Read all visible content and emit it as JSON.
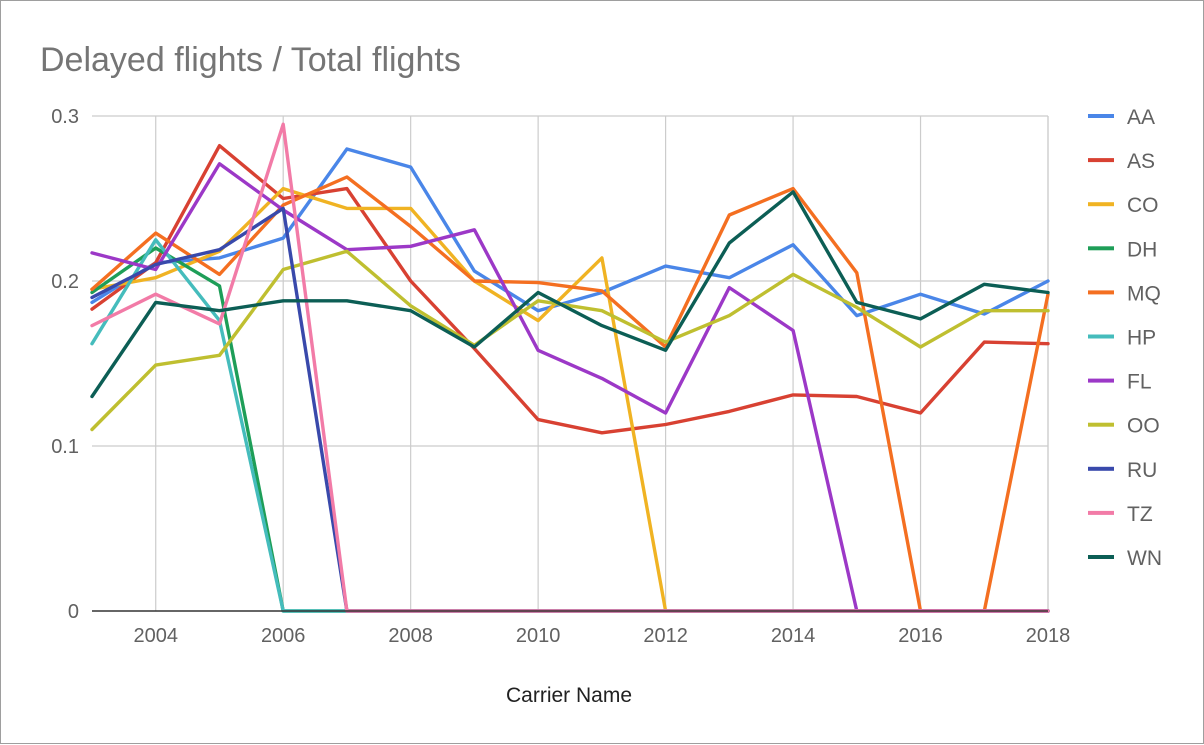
{
  "chart_data": {
    "type": "line",
    "title": "Delayed flights / Total flights",
    "xlabel": "Carrier Name",
    "ylabel": "",
    "xlim": [
      2003,
      2018
    ],
    "ylim": [
      0,
      0.3
    ],
    "x_ticks": [
      2004,
      2006,
      2008,
      2010,
      2012,
      2014,
      2016,
      2018
    ],
    "y_ticks": [
      0,
      0.1,
      0.2,
      0.3
    ],
    "y_tick_labels": [
      "0",
      "0.1",
      "0.2",
      "0.3"
    ],
    "x_gridlines_years": [
      2004,
      2006,
      2008,
      2010,
      2012,
      2014,
      2016,
      2018
    ],
    "grid": true,
    "legend_position": "right",
    "x": [
      2003,
      2004,
      2005,
      2006,
      2007,
      2008,
      2009,
      2010,
      2011,
      2012,
      2013,
      2014,
      2015,
      2016,
      2017,
      2018
    ],
    "series": [
      {
        "name": "AA",
        "color": "#4a86e8",
        "values": [
          0.187,
          0.211,
          0.214,
          0.226,
          0.28,
          0.269,
          0.206,
          0.182,
          0.193,
          0.209,
          0.202,
          0.222,
          0.179,
          0.192,
          0.18,
          0.2
        ]
      },
      {
        "name": "AS",
        "color": "#d84132",
        "values": [
          0.183,
          0.211,
          0.282,
          0.25,
          0.256,
          0.2,
          0.159,
          0.116,
          0.108,
          0.113,
          0.121,
          0.131,
          0.13,
          0.12,
          0.163,
          0.162
        ]
      },
      {
        "name": "CO",
        "color": "#f0b323",
        "values": [
          0.195,
          0.202,
          0.218,
          0.256,
          0.244,
          0.244,
          0.2,
          0.176,
          0.214,
          0.0,
          0.0,
          0.0,
          0.0,
          0.0,
          0.0,
          0.0
        ]
      },
      {
        "name": "DH",
        "color": "#1e9e58",
        "values": [
          0.193,
          0.22,
          0.197,
          0.0,
          0.0,
          0.0,
          0.0,
          0.0,
          0.0,
          0.0,
          0.0,
          0.0,
          0.0,
          0.0,
          0.0,
          0.0
        ]
      },
      {
        "name": "MQ",
        "color": "#f46f21",
        "values": [
          0.195,
          0.229,
          0.204,
          0.246,
          0.263,
          0.233,
          0.2,
          0.199,
          0.194,
          0.16,
          0.24,
          0.256,
          0.205,
          0.0,
          0.0,
          0.192
        ]
      },
      {
        "name": "HP",
        "color": "#45bcbc",
        "values": [
          0.162,
          0.225,
          0.176,
          0.0,
          0.0,
          0.0,
          0.0,
          0.0,
          0.0,
          0.0,
          0.0,
          0.0,
          0.0,
          0.0,
          0.0,
          0.0
        ]
      },
      {
        "name": "FL",
        "color": "#9c38c7",
        "values": [
          0.217,
          0.207,
          0.271,
          0.243,
          0.219,
          0.221,
          0.231,
          0.158,
          0.141,
          0.12,
          0.196,
          0.17,
          0.0,
          0.0,
          0.0,
          0.0
        ]
      },
      {
        "name": "OO",
        "color": "#bfbf30",
        "values": [
          0.11,
          0.149,
          0.155,
          0.207,
          0.218,
          0.185,
          0.161,
          0.188,
          0.182,
          0.163,
          0.179,
          0.204,
          0.184,
          0.16,
          0.182,
          0.182
        ]
      },
      {
        "name": "RU",
        "color": "#3949ab",
        "values": [
          0.19,
          0.21,
          0.219,
          0.244,
          0.0,
          0.0,
          0.0,
          0.0,
          0.0,
          0.0,
          0.0,
          0.0,
          0.0,
          0.0,
          0.0,
          0.0
        ]
      },
      {
        "name": "TZ",
        "color": "#f27ba7",
        "values": [
          0.173,
          0.192,
          0.174,
          0.295,
          0.0,
          0.0,
          0.0,
          0.0,
          0.0,
          0.0,
          0.0,
          0.0,
          0.0,
          0.0,
          0.0,
          0.0
        ]
      },
      {
        "name": "WN",
        "color": "#0c5e55",
        "values": [
          0.13,
          0.187,
          0.182,
          0.188,
          0.188,
          0.182,
          0.16,
          0.193,
          0.173,
          0.158,
          0.223,
          0.254,
          0.187,
          0.177,
          0.198,
          0.193
        ]
      }
    ]
  }
}
